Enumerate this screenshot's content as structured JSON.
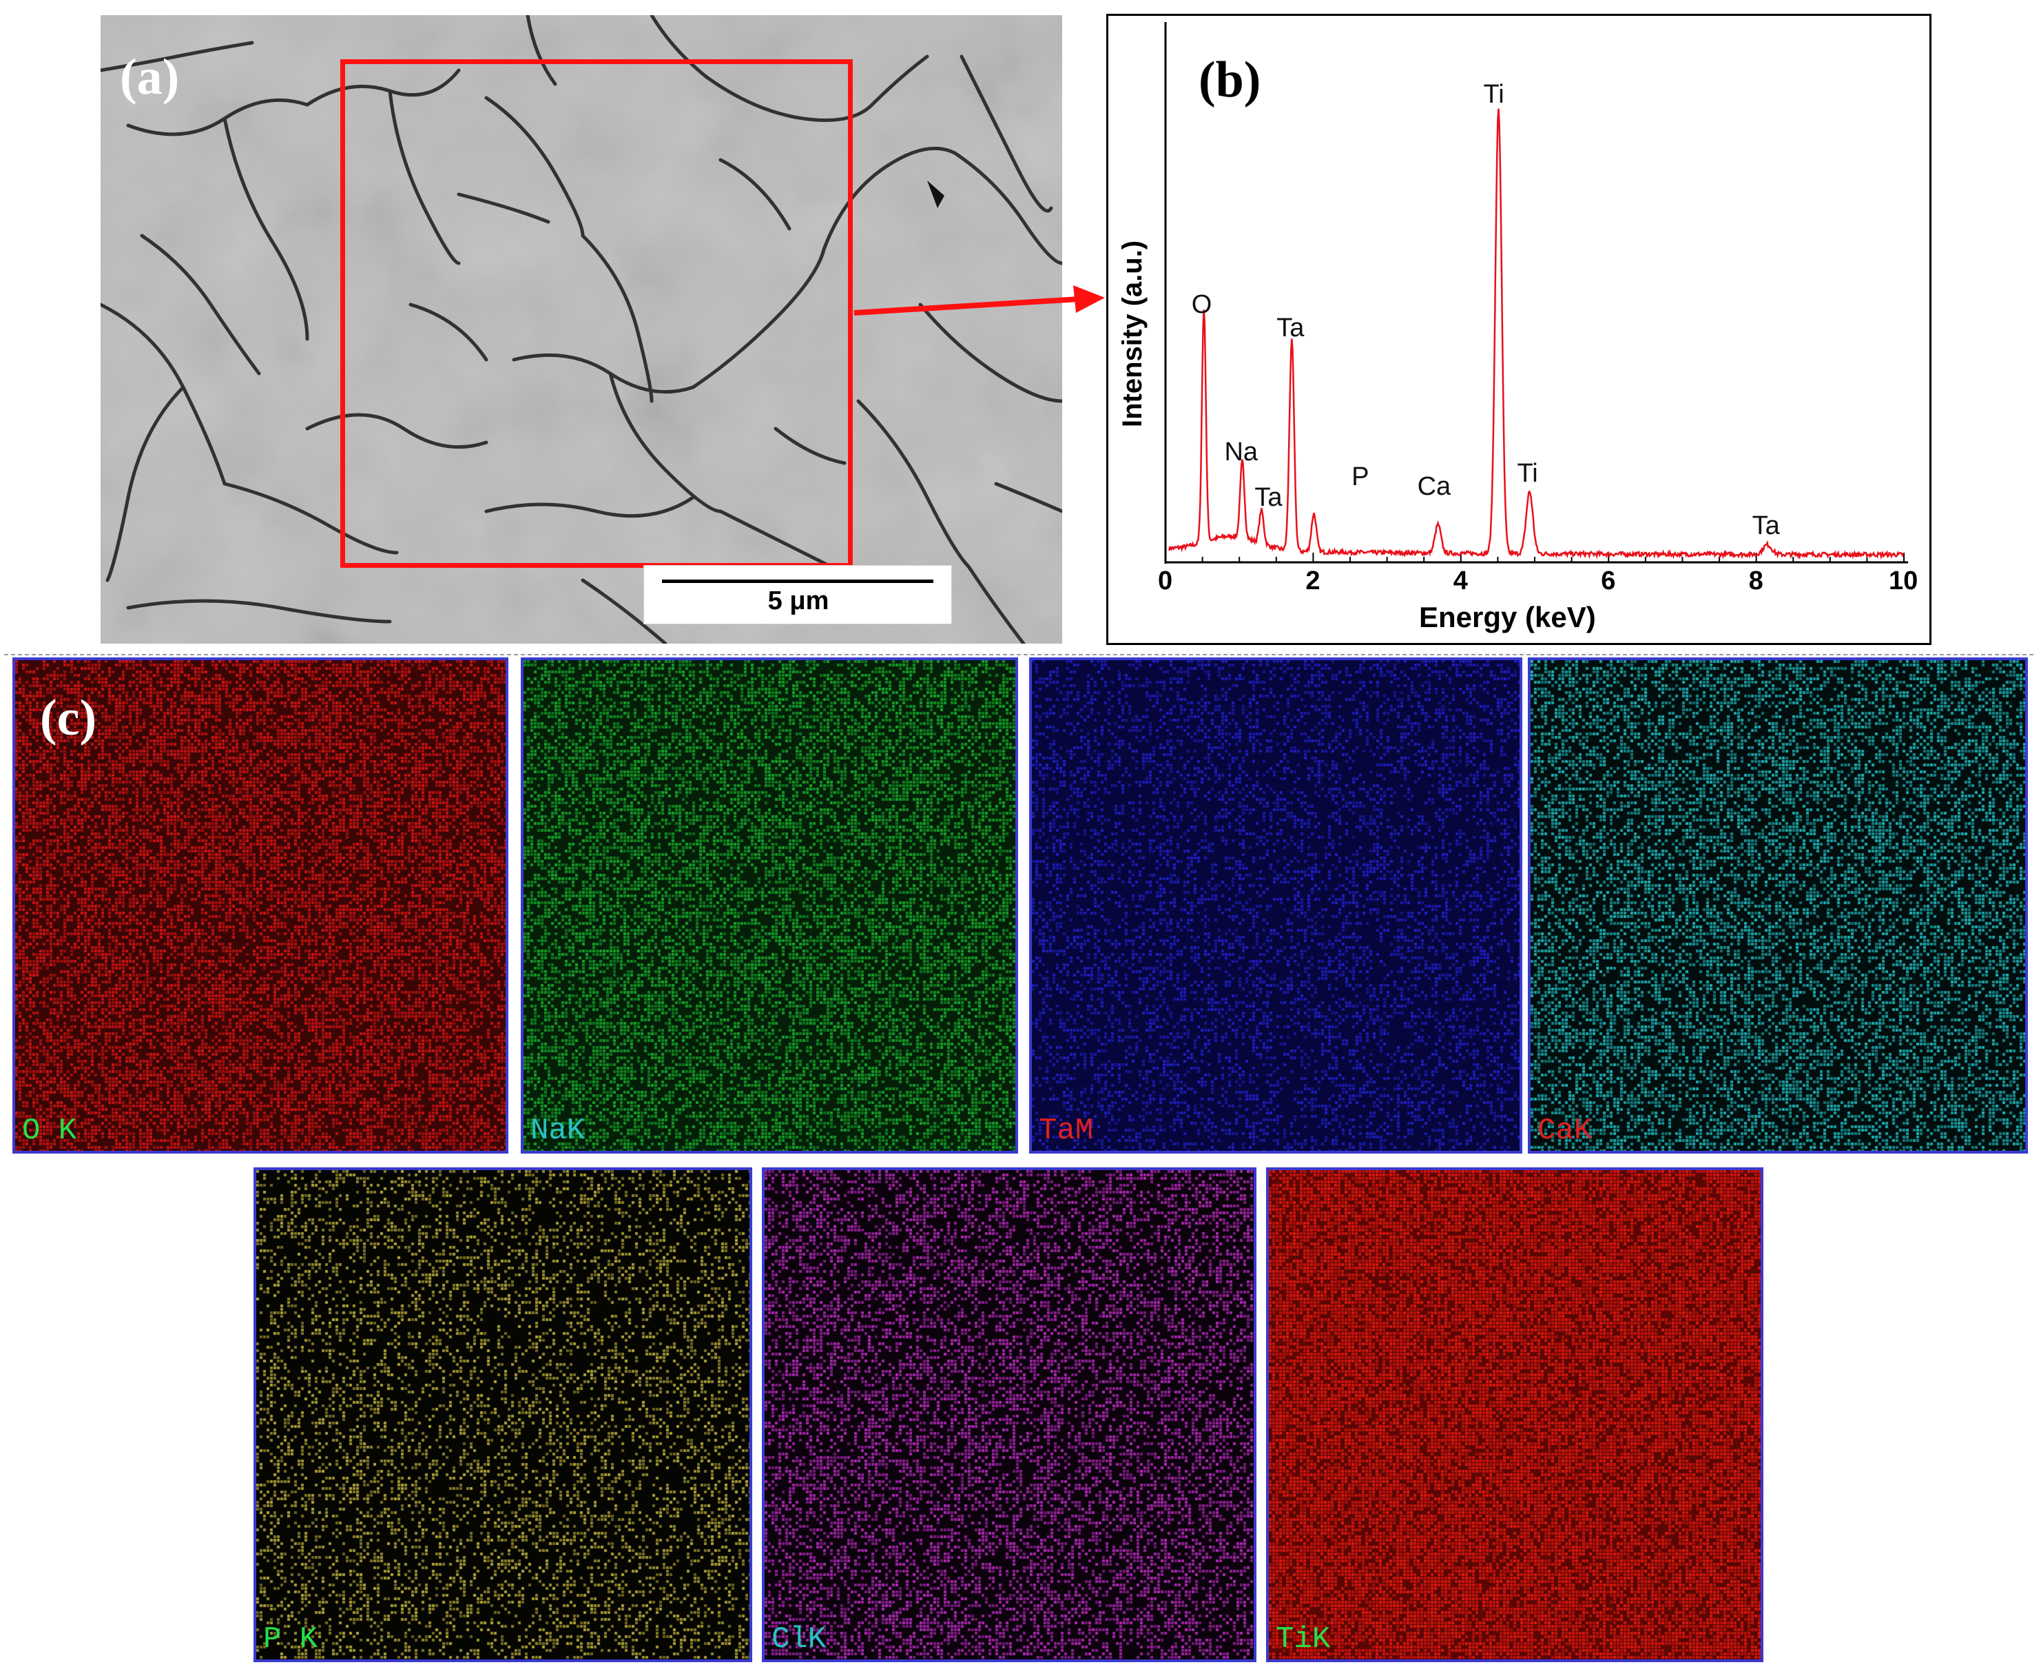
{
  "panel_a": {
    "letter": "(a)",
    "scale_bar": "5 μm"
  },
  "panel_b": {
    "letter": "(b)"
  },
  "chart_data": {
    "type": "line",
    "xlabel": "Energy (keV)",
    "ylabel": "Intensity (a.u.)",
    "xlim": [
      0,
      10
    ],
    "ylim": [
      0,
      100
    ],
    "x_ticks": [
      "0",
      "2",
      "4",
      "6",
      "8",
      "10"
    ],
    "grid": false,
    "peaks": [
      {
        "label": "O",
        "energy": 0.52,
        "intensity": 49
      },
      {
        "label": "Na",
        "energy": 1.04,
        "intensity": 16
      },
      {
        "label": "Ta",
        "energy": 1.3,
        "intensity": 7
      },
      {
        "label": "Ta",
        "energy": 1.71,
        "intensity": 44
      },
      {
        "label": "P",
        "energy": 2.01,
        "intensity": 8
      },
      {
        "label": "Ca",
        "energy": 3.69,
        "intensity": 6
      },
      {
        "label": "Ti",
        "energy": 4.51,
        "intensity": 93
      },
      {
        "label": "Ti",
        "energy": 4.93,
        "intensity": 13
      },
      {
        "label": "Ta",
        "energy": 8.15,
        "intensity": 2
      }
    ],
    "series": [
      {
        "color": "#e8101a"
      }
    ]
  },
  "panel_c": {
    "letter": "(c)",
    "maps": [
      {
        "label": "O  K",
        "color": "#d41414",
        "bg": "#3a0505",
        "label_color": "#27e04a"
      },
      {
        "label": "NaK",
        "color": "#17a82a",
        "bg": "#041e08",
        "label_color": "#29c0c4"
      },
      {
        "label": "TaM",
        "color": "#2020c8",
        "bg": "#06063c",
        "label_color": "#e02020"
      },
      {
        "label": "CaK",
        "color": "#1fb5b8",
        "bg": "#020d0d",
        "label_color": "#e02020"
      },
      {
        "label": "P  K",
        "color": "#b5a83a",
        "bg": "#050502",
        "label_color": "#27e04a"
      },
      {
        "label": "ClK",
        "color": "#b32ab8",
        "bg": "#0b020c",
        "label_color": "#29c0c4"
      },
      {
        "label": "TiK",
        "color": "#e3180f",
        "bg": "#5a0604",
        "label_color": "#27e04a"
      }
    ]
  }
}
